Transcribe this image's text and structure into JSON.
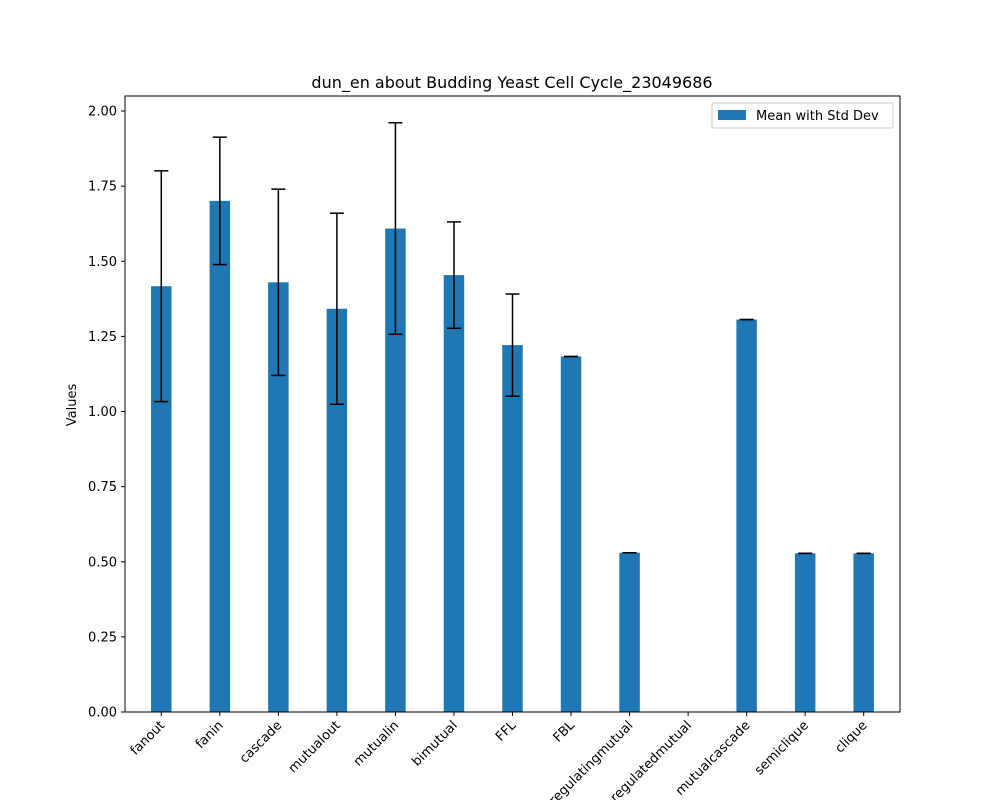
{
  "chart_data": {
    "type": "bar",
    "title": "dun_en about Budding Yeast Cell Cycle_23049686",
    "xlabel": "",
    "ylabel": "Values",
    "categories": [
      "fanout",
      "fanin",
      "cascade",
      "mutualout",
      "mutualin",
      "bimutual",
      "FFL",
      "FBL",
      "regulatingmutual",
      "regulatedmutual",
      "mutualcascade",
      "semiclique",
      "clique"
    ],
    "series": [
      {
        "name": "Mean with Std Dev",
        "values": [
          1.417,
          1.701,
          1.43,
          1.342,
          1.609,
          1.454,
          1.221,
          1.183,
          0.53,
          0.0,
          1.306,
          0.528,
          0.528
        ],
        "errors": [
          0.384,
          0.212,
          0.31,
          0.318,
          0.352,
          0.177,
          0.17,
          0.0,
          0.0,
          0.0,
          0.0,
          0.0,
          0.0
        ]
      }
    ],
    "ylim": [
      0.0,
      2.05
    ],
    "yticks": [
      "0.00",
      "0.25",
      "0.50",
      "0.75",
      "1.00",
      "1.25",
      "1.50",
      "1.75",
      "2.00"
    ],
    "grid": false,
    "legend_position": "top-right",
    "colors": {
      "bar": "#1f77b4",
      "error": "#000000",
      "axis": "#000000"
    }
  }
}
